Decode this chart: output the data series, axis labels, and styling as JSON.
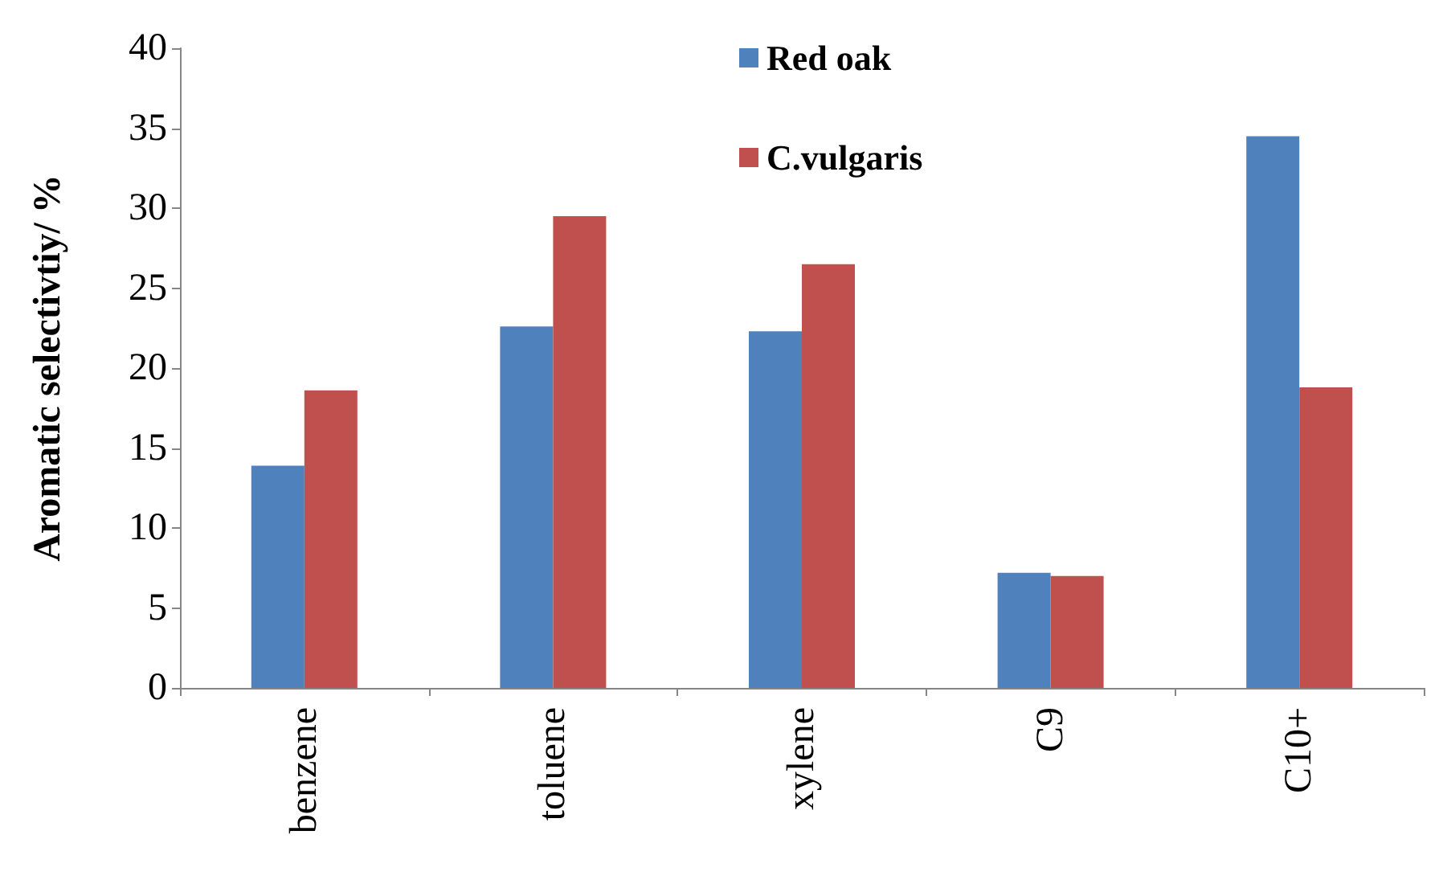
{
  "chart_data": {
    "type": "bar",
    "ylabel": "Aromatic selectivtiy/ %",
    "categories": [
      "benzene",
      "toluene",
      "xylene",
      "C9",
      "C10+"
    ],
    "series": [
      {
        "name": "Red oak",
        "color": "#4f81bd",
        "values": [
          13.9,
          22.6,
          22.3,
          7.2,
          34.5
        ]
      },
      {
        "name": "C.vulgaris",
        "color": "#c0504d",
        "values": [
          18.6,
          29.5,
          26.5,
          7.0,
          18.8
        ]
      }
    ],
    "ylim": [
      0,
      40
    ],
    "yticks": [
      0,
      5,
      10,
      15,
      20,
      25,
      30,
      35,
      40
    ],
    "grid": false,
    "legend": "top"
  }
}
